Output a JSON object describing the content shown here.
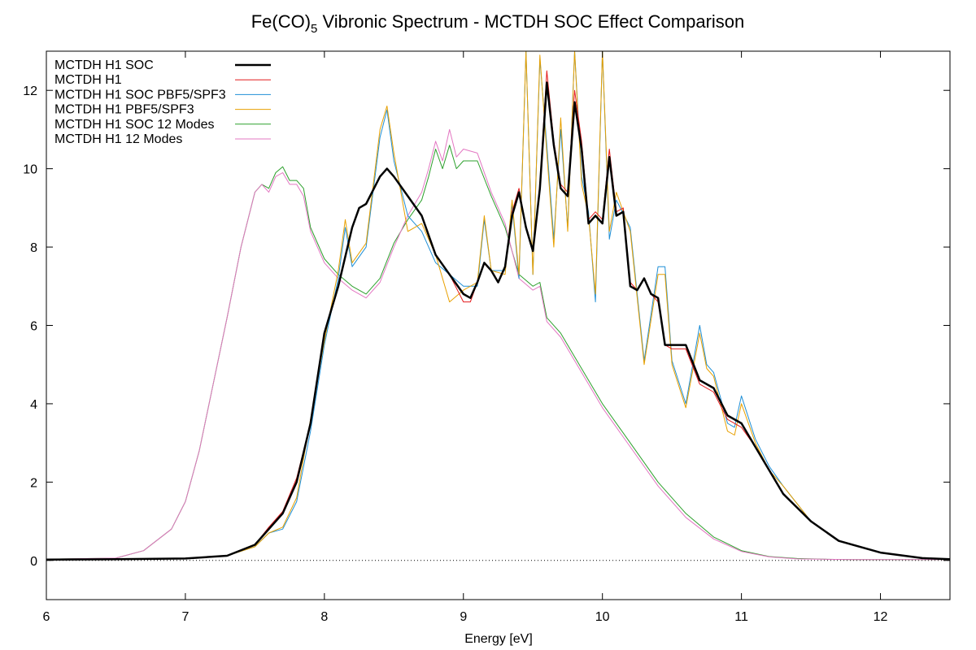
{
  "chart_data": {
    "type": "line",
    "title": "Fe(CO)",
    "title_sub": "5",
    "title_rest": " Vibronic Spectrum - MCTDH SOC Effect Comparison",
    "xlabel": "Energy [eV]",
    "ylabel": "",
    "xlim": [
      6,
      12.5
    ],
    "ylim": [
      -1,
      13
    ],
    "xticks": [
      6,
      7,
      8,
      9,
      10,
      11,
      12
    ],
    "yticks": [
      0,
      2,
      4,
      6,
      8,
      10,
      12
    ],
    "grid": false,
    "zero_line": true,
    "legend_position": "top-left",
    "series": [
      {
        "name": "MCTDH H1 SOC",
        "color": "#000000",
        "x": [
          6.0,
          6.5,
          7.0,
          7.3,
          7.5,
          7.6,
          7.7,
          7.8,
          7.9,
          8.0,
          8.1,
          8.2,
          8.25,
          8.3,
          8.4,
          8.45,
          8.5,
          8.6,
          8.7,
          8.8,
          8.9,
          9.0,
          9.05,
          9.1,
          9.15,
          9.2,
          9.25,
          9.3,
          9.35,
          9.4,
          9.45,
          9.5,
          9.55,
          9.6,
          9.65,
          9.7,
          9.75,
          9.8,
          9.85,
          9.9,
          9.95,
          10.0,
          10.05,
          10.1,
          10.15,
          10.2,
          10.25,
          10.3,
          10.35,
          10.4,
          10.45,
          10.5,
          10.6,
          10.7,
          10.8,
          10.9,
          11.0,
          11.1,
          11.2,
          11.3,
          11.5,
          11.7,
          12.0,
          12.3,
          12.5
        ],
        "y": [
          0.02,
          0.03,
          0.05,
          0.12,
          0.4,
          0.8,
          1.2,
          2.0,
          3.5,
          5.8,
          7.0,
          8.5,
          9.0,
          9.1,
          9.8,
          10.0,
          9.8,
          9.3,
          8.8,
          7.8,
          7.3,
          6.8,
          6.7,
          7.1,
          7.6,
          7.4,
          7.1,
          7.5,
          8.8,
          9.4,
          8.5,
          7.9,
          9.5,
          12.2,
          10.6,
          9.5,
          9.3,
          11.7,
          10.5,
          8.6,
          8.8,
          8.6,
          10.3,
          8.8,
          8.9,
          7.0,
          6.9,
          7.2,
          6.8,
          6.7,
          5.5,
          5.5,
          5.5,
          4.6,
          4.4,
          3.7,
          3.5,
          2.9,
          2.3,
          1.7,
          1.0,
          0.5,
          0.2,
          0.06,
          0.03
        ]
      },
      {
        "name": "MCTDH H1",
        "color": "#e41a1c",
        "x": [
          6.0,
          6.5,
          7.0,
          7.3,
          7.5,
          7.6,
          7.7,
          7.8,
          7.9,
          8.0,
          8.1,
          8.2,
          8.25,
          8.3,
          8.4,
          8.45,
          8.5,
          8.6,
          8.7,
          8.8,
          8.9,
          9.0,
          9.05,
          9.1,
          9.15,
          9.2,
          9.25,
          9.3,
          9.35,
          9.4,
          9.45,
          9.5,
          9.55,
          9.6,
          9.65,
          9.7,
          9.75,
          9.8,
          9.85,
          9.9,
          9.95,
          10.0,
          10.05,
          10.1,
          10.15,
          10.2,
          10.25,
          10.3,
          10.35,
          10.4,
          10.45,
          10.5,
          10.6,
          10.7,
          10.8,
          10.9,
          11.0,
          11.1,
          11.2,
          11.3,
          11.5,
          11.7,
          12.0,
          12.3,
          12.5
        ],
        "y": [
          0.02,
          0.03,
          0.05,
          0.12,
          0.4,
          0.85,
          1.25,
          2.1,
          3.5,
          5.8,
          7.0,
          8.5,
          9.0,
          9.1,
          9.8,
          10.0,
          9.8,
          9.3,
          8.8,
          7.8,
          7.3,
          6.6,
          6.6,
          7.1,
          7.6,
          7.4,
          7.1,
          7.5,
          8.9,
          9.5,
          8.5,
          7.9,
          9.6,
          12.5,
          10.7,
          9.6,
          9.4,
          12.0,
          10.7,
          8.7,
          8.9,
          8.7,
          10.5,
          8.9,
          9.0,
          7.1,
          6.9,
          7.2,
          6.8,
          6.6,
          5.5,
          5.4,
          5.4,
          4.5,
          4.3,
          3.6,
          3.4,
          2.9,
          2.3,
          1.7,
          1.0,
          0.5,
          0.2,
          0.06,
          0.03
        ]
      },
      {
        "name": "MCTDH H1 SOC PBF5/SPF3",
        "color": "#1f8fd6",
        "x": [
          6.0,
          6.5,
          7.0,
          7.3,
          7.5,
          7.6,
          7.7,
          7.8,
          7.9,
          8.0,
          8.1,
          8.15,
          8.2,
          8.3,
          8.4,
          8.45,
          8.5,
          8.6,
          8.7,
          8.8,
          8.9,
          9.0,
          9.1,
          9.15,
          9.2,
          9.3,
          9.35,
          9.4,
          9.45,
          9.5,
          9.55,
          9.6,
          9.65,
          9.7,
          9.75,
          9.8,
          9.85,
          9.9,
          9.95,
          10.0,
          10.05,
          10.1,
          10.2,
          10.3,
          10.4,
          10.45,
          10.5,
          10.6,
          10.7,
          10.75,
          10.8,
          10.9,
          10.95,
          11.0,
          11.1,
          11.2,
          11.3,
          11.5,
          11.7,
          12.0,
          12.3,
          12.5
        ],
        "y": [
          0.02,
          0.03,
          0.05,
          0.12,
          0.35,
          0.7,
          0.8,
          1.5,
          3.3,
          5.5,
          7.2,
          8.5,
          7.5,
          8.0,
          10.8,
          11.5,
          10.2,
          8.8,
          8.4,
          7.6,
          7.3,
          7.0,
          7.0,
          8.7,
          7.4,
          7.4,
          9.1,
          7.2,
          13.0,
          7.3,
          12.8,
          10.6,
          8.2,
          11.0,
          8.5,
          13.0,
          9.8,
          8.9,
          6.6,
          13.0,
          8.2,
          9.2,
          8.5,
          5.1,
          7.5,
          7.5,
          5.1,
          4.0,
          6.0,
          5.0,
          4.8,
          3.5,
          3.4,
          4.2,
          3.1,
          2.4,
          1.9,
          1.0,
          0.5,
          0.2,
          0.06,
          0.03
        ]
      },
      {
        "name": "MCTDH H1 PBF5/SPF3",
        "color": "#e8a000",
        "x": [
          6.0,
          6.5,
          7.0,
          7.3,
          7.5,
          7.6,
          7.7,
          7.8,
          7.9,
          8.0,
          8.1,
          8.15,
          8.2,
          8.3,
          8.4,
          8.45,
          8.5,
          8.6,
          8.7,
          8.8,
          8.9,
          9.0,
          9.1,
          9.15,
          9.2,
          9.3,
          9.35,
          9.4,
          9.45,
          9.5,
          9.55,
          9.6,
          9.65,
          9.7,
          9.75,
          9.8,
          9.85,
          9.9,
          9.95,
          10.0,
          10.05,
          10.1,
          10.2,
          10.3,
          10.4,
          10.45,
          10.5,
          10.6,
          10.7,
          10.75,
          10.8,
          10.9,
          10.95,
          11.0,
          11.1,
          11.2,
          11.3,
          11.5,
          11.7,
          12.0,
          12.3,
          12.5
        ],
        "y": [
          0.02,
          0.03,
          0.05,
          0.12,
          0.35,
          0.7,
          0.85,
          1.6,
          3.6,
          5.6,
          7.4,
          8.7,
          7.6,
          8.1,
          11.0,
          11.6,
          10.4,
          8.4,
          8.6,
          7.8,
          6.6,
          6.9,
          7.1,
          8.8,
          7.4,
          7.3,
          9.2,
          7.3,
          13.0,
          7.3,
          12.9,
          10.4,
          8.0,
          11.3,
          8.4,
          13.0,
          9.6,
          8.8,
          6.8,
          13.0,
          8.4,
          9.4,
          8.4,
          5.0,
          7.3,
          7.3,
          5.0,
          3.9,
          5.8,
          4.9,
          4.7,
          3.3,
          3.2,
          4.0,
          3.0,
          2.3,
          1.9,
          1.0,
          0.5,
          0.2,
          0.06,
          0.03
        ]
      },
      {
        "name": "MCTDH H1 SOC 12 Modes",
        "color": "#2ca02c",
        "x": [
          6.0,
          6.5,
          6.7,
          6.9,
          7.0,
          7.1,
          7.2,
          7.3,
          7.4,
          7.5,
          7.55,
          7.6,
          7.65,
          7.7,
          7.75,
          7.8,
          7.85,
          7.9,
          8.0,
          8.1,
          8.2,
          8.3,
          8.4,
          8.5,
          8.6,
          8.7,
          8.75,
          8.8,
          8.85,
          8.9,
          8.95,
          9.0,
          9.1,
          9.2,
          9.3,
          9.4,
          9.5,
          9.55,
          9.6,
          9.7,
          9.8,
          9.9,
          10.0,
          10.2,
          10.4,
          10.6,
          10.8,
          11.0,
          11.2,
          11.4,
          11.6,
          11.8,
          12.0,
          12.5
        ],
        "y": [
          0.03,
          0.06,
          0.25,
          0.8,
          1.5,
          2.8,
          4.5,
          6.2,
          8.0,
          9.4,
          9.6,
          9.5,
          9.9,
          10.05,
          9.7,
          9.7,
          9.5,
          8.5,
          7.7,
          7.3,
          7.0,
          6.8,
          7.2,
          8.1,
          8.7,
          9.2,
          9.8,
          10.5,
          10.0,
          10.6,
          10.0,
          10.2,
          10.2,
          9.3,
          8.5,
          7.3,
          7.0,
          7.1,
          6.2,
          5.8,
          5.2,
          4.6,
          4.0,
          3.0,
          2.0,
          1.2,
          0.6,
          0.25,
          0.1,
          0.05,
          0.03,
          0.02,
          0.02,
          0.02
        ]
      },
      {
        "name": "MCTDH H1 12 Modes",
        "color": "#e377c2",
        "x": [
          6.0,
          6.5,
          6.7,
          6.9,
          7.0,
          7.1,
          7.2,
          7.3,
          7.4,
          7.5,
          7.55,
          7.6,
          7.65,
          7.7,
          7.75,
          7.8,
          7.85,
          7.9,
          8.0,
          8.1,
          8.2,
          8.3,
          8.4,
          8.5,
          8.6,
          8.7,
          8.75,
          8.8,
          8.85,
          8.9,
          8.95,
          9.0,
          9.1,
          9.2,
          9.3,
          9.4,
          9.5,
          9.55,
          9.6,
          9.7,
          9.8,
          9.9,
          10.0,
          10.2,
          10.4,
          10.6,
          10.8,
          11.0,
          11.2,
          11.4,
          11.6,
          11.8,
          12.0,
          12.5
        ],
        "y": [
          0.03,
          0.06,
          0.25,
          0.8,
          1.5,
          2.8,
          4.5,
          6.2,
          8.0,
          9.4,
          9.6,
          9.4,
          9.8,
          9.9,
          9.6,
          9.6,
          9.3,
          8.4,
          7.6,
          7.2,
          6.9,
          6.7,
          7.1,
          8.0,
          8.8,
          9.4,
          10.0,
          10.7,
          10.2,
          11.0,
          10.3,
          10.5,
          10.4,
          9.4,
          8.6,
          7.2,
          6.9,
          7.0,
          6.1,
          5.7,
          5.1,
          4.5,
          3.9,
          2.9,
          1.9,
          1.1,
          0.55,
          0.23,
          0.09,
          0.04,
          0.03,
          0.02,
          0.02,
          0.02
        ]
      }
    ]
  }
}
